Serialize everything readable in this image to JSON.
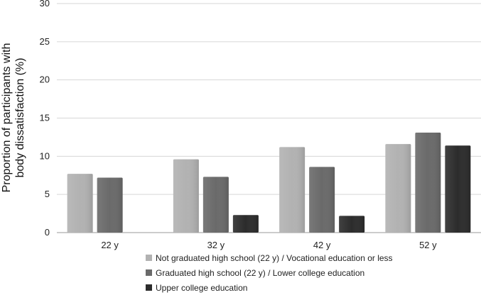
{
  "chart_data": {
    "type": "bar",
    "title": "",
    "xlabel": "",
    "ylabel_lines": [
      "Proportion of participants with",
      "body dissatisfaction (%)"
    ],
    "ylim": [
      0,
      30
    ],
    "yticks": [
      0,
      5,
      10,
      15,
      20,
      25,
      30
    ],
    "categories": [
      "22 y",
      "32 y",
      "42 y",
      "52 y"
    ],
    "series": [
      {
        "name": "Not graduated high school (22 y) / Vocational education or less",
        "color": "#b2b2b2",
        "values": [
          7.7,
          9.6,
          11.2,
          11.6
        ]
      },
      {
        "name": "Graduated high school (22 y) / Lower college education",
        "color": "#6a6a6a",
        "values": [
          7.2,
          7.3,
          8.6,
          13.1
        ]
      },
      {
        "name": "Upper college education",
        "color": "#2c2c2c",
        "values": [
          null,
          2.3,
          2.2,
          11.4
        ]
      }
    ],
    "legend_position": "bottom"
  }
}
